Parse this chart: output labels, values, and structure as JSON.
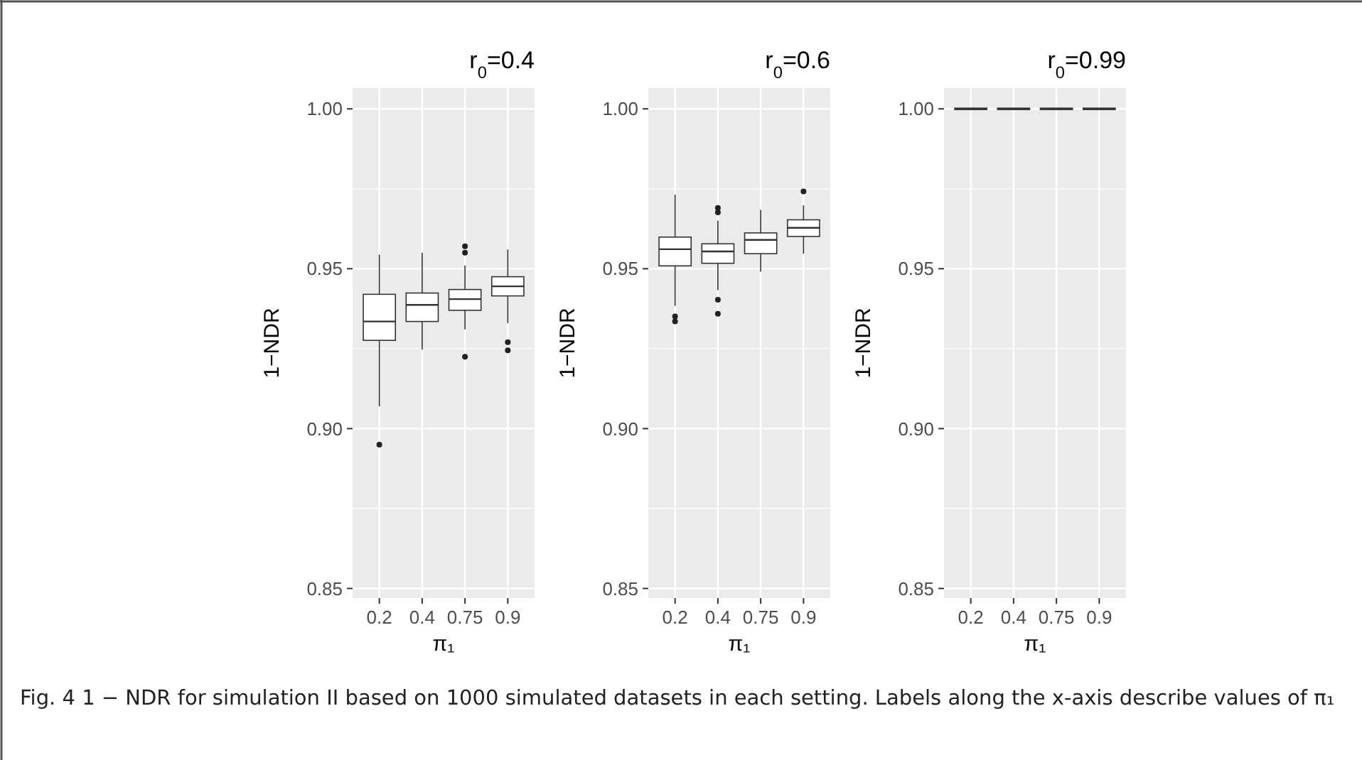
{
  "chart_data": [
    {
      "type": "box",
      "title": "r$_{0}$=0.4",
      "xlabel": "π₁",
      "ylabel": "1−NDR",
      "categories": [
        "0.2",
        "0.4",
        "0.75",
        "0.9"
      ],
      "ylim": [
        0.847,
        1.0065
      ],
      "yticks": [
        {
          "value": 0.85,
          "label": "0.85"
        },
        {
          "value": 0.9,
          "label": "0.90"
        },
        {
          "value": 0.95,
          "label": "0.95"
        },
        {
          "value": 1,
          "label": "1.00"
        }
      ],
      "grid": true,
      "boxes": [
        {
          "low": 0.907,
          "q1": 0.9276,
          "median": 0.9335,
          "q3": 0.942,
          "high": 0.9544,
          "outliers": [
            0.895
          ]
        },
        {
          "low": 0.9247,
          "q1": 0.9335,
          "median": 0.9387,
          "q3": 0.9424,
          "high": 0.955
        },
        {
          "low": 0.931,
          "q1": 0.937,
          "median": 0.9405,
          "q3": 0.9435,
          "high": 0.951,
          "outliers": [
            0.957,
            0.955,
            0.9225
          ]
        },
        {
          "low": 0.933,
          "q1": 0.9415,
          "median": 0.9445,
          "q3": 0.9475,
          "high": 0.956,
          "outliers": [
            0.927,
            0.9245
          ]
        }
      ],
      "annotations": [
        "Fig. 4 1 − NDR for simulation II based on 1000 simulated datasets in each setting. Labels along the x-axis describe values of π₁"
      ]
    },
    {
      "type": "box",
      "title": "r$_{0}$=0.6",
      "xlabel": "π₁",
      "ylabel": "1−NDR",
      "categories": [
        "0.2",
        "0.4",
        "0.75",
        "0.9"
      ],
      "ylim": [
        0.847,
        1.0065
      ],
      "yticks": [
        {
          "value": 0.85,
          "label": "0.85"
        },
        {
          "value": 0.9,
          "label": "0.90"
        },
        {
          "value": 0.95,
          "label": "0.95"
        },
        {
          "value": 1,
          "label": "1.00"
        }
      ],
      "grid": true,
      "boxes": [
        {
          "low": 0.9384,
          "q1": 0.9509,
          "median": 0.9561,
          "q3": 0.9599,
          "high": 0.9732,
          "outliers": [
            0.9351,
            0.9335
          ]
        },
        {
          "low": 0.9433,
          "q1": 0.9517,
          "median": 0.9554,
          "q3": 0.9578,
          "high": 0.965,
          "outliers": [
            0.969,
            0.9676,
            0.9403,
            0.9359
          ]
        },
        {
          "low": 0.9491,
          "q1": 0.9547,
          "median": 0.959,
          "q3": 0.9612,
          "high": 0.9684
        },
        {
          "low": 0.9547,
          "q1": 0.9601,
          "median": 0.9628,
          "q3": 0.9653,
          "high": 0.9698,
          "outliers": [
            0.9742
          ]
        }
      ]
    },
    {
      "type": "box",
      "title": "r$_{0}$=0.99",
      "xlabel": "π₁",
      "ylabel": "1−NDR",
      "categories": [
        "0.2",
        "0.4",
        "0.75",
        "0.9"
      ],
      "ylim": [
        0.847,
        1.0065
      ],
      "yticks": [
        {
          "value": 0.85,
          "label": "0.85"
        },
        {
          "value": 0.9,
          "label": "0.90"
        },
        {
          "value": 0.95,
          "label": "0.95"
        },
        {
          "value": 1,
          "label": "1.00"
        }
      ],
      "grid": true,
      "boxes": [
        {
          "low": 1,
          "q1": 1,
          "median": 1,
          "q3": 1,
          "high": 1
        },
        {
          "low": 1,
          "q1": 1,
          "median": 1,
          "q3": 1,
          "high": 1
        },
        {
          "low": 1,
          "q1": 1,
          "median": 1,
          "q3": 1,
          "high": 1
        },
        {
          "low": 1,
          "q1": 1,
          "median": 1,
          "q3": 1,
          "high": 1
        }
      ]
    }
  ]
}
